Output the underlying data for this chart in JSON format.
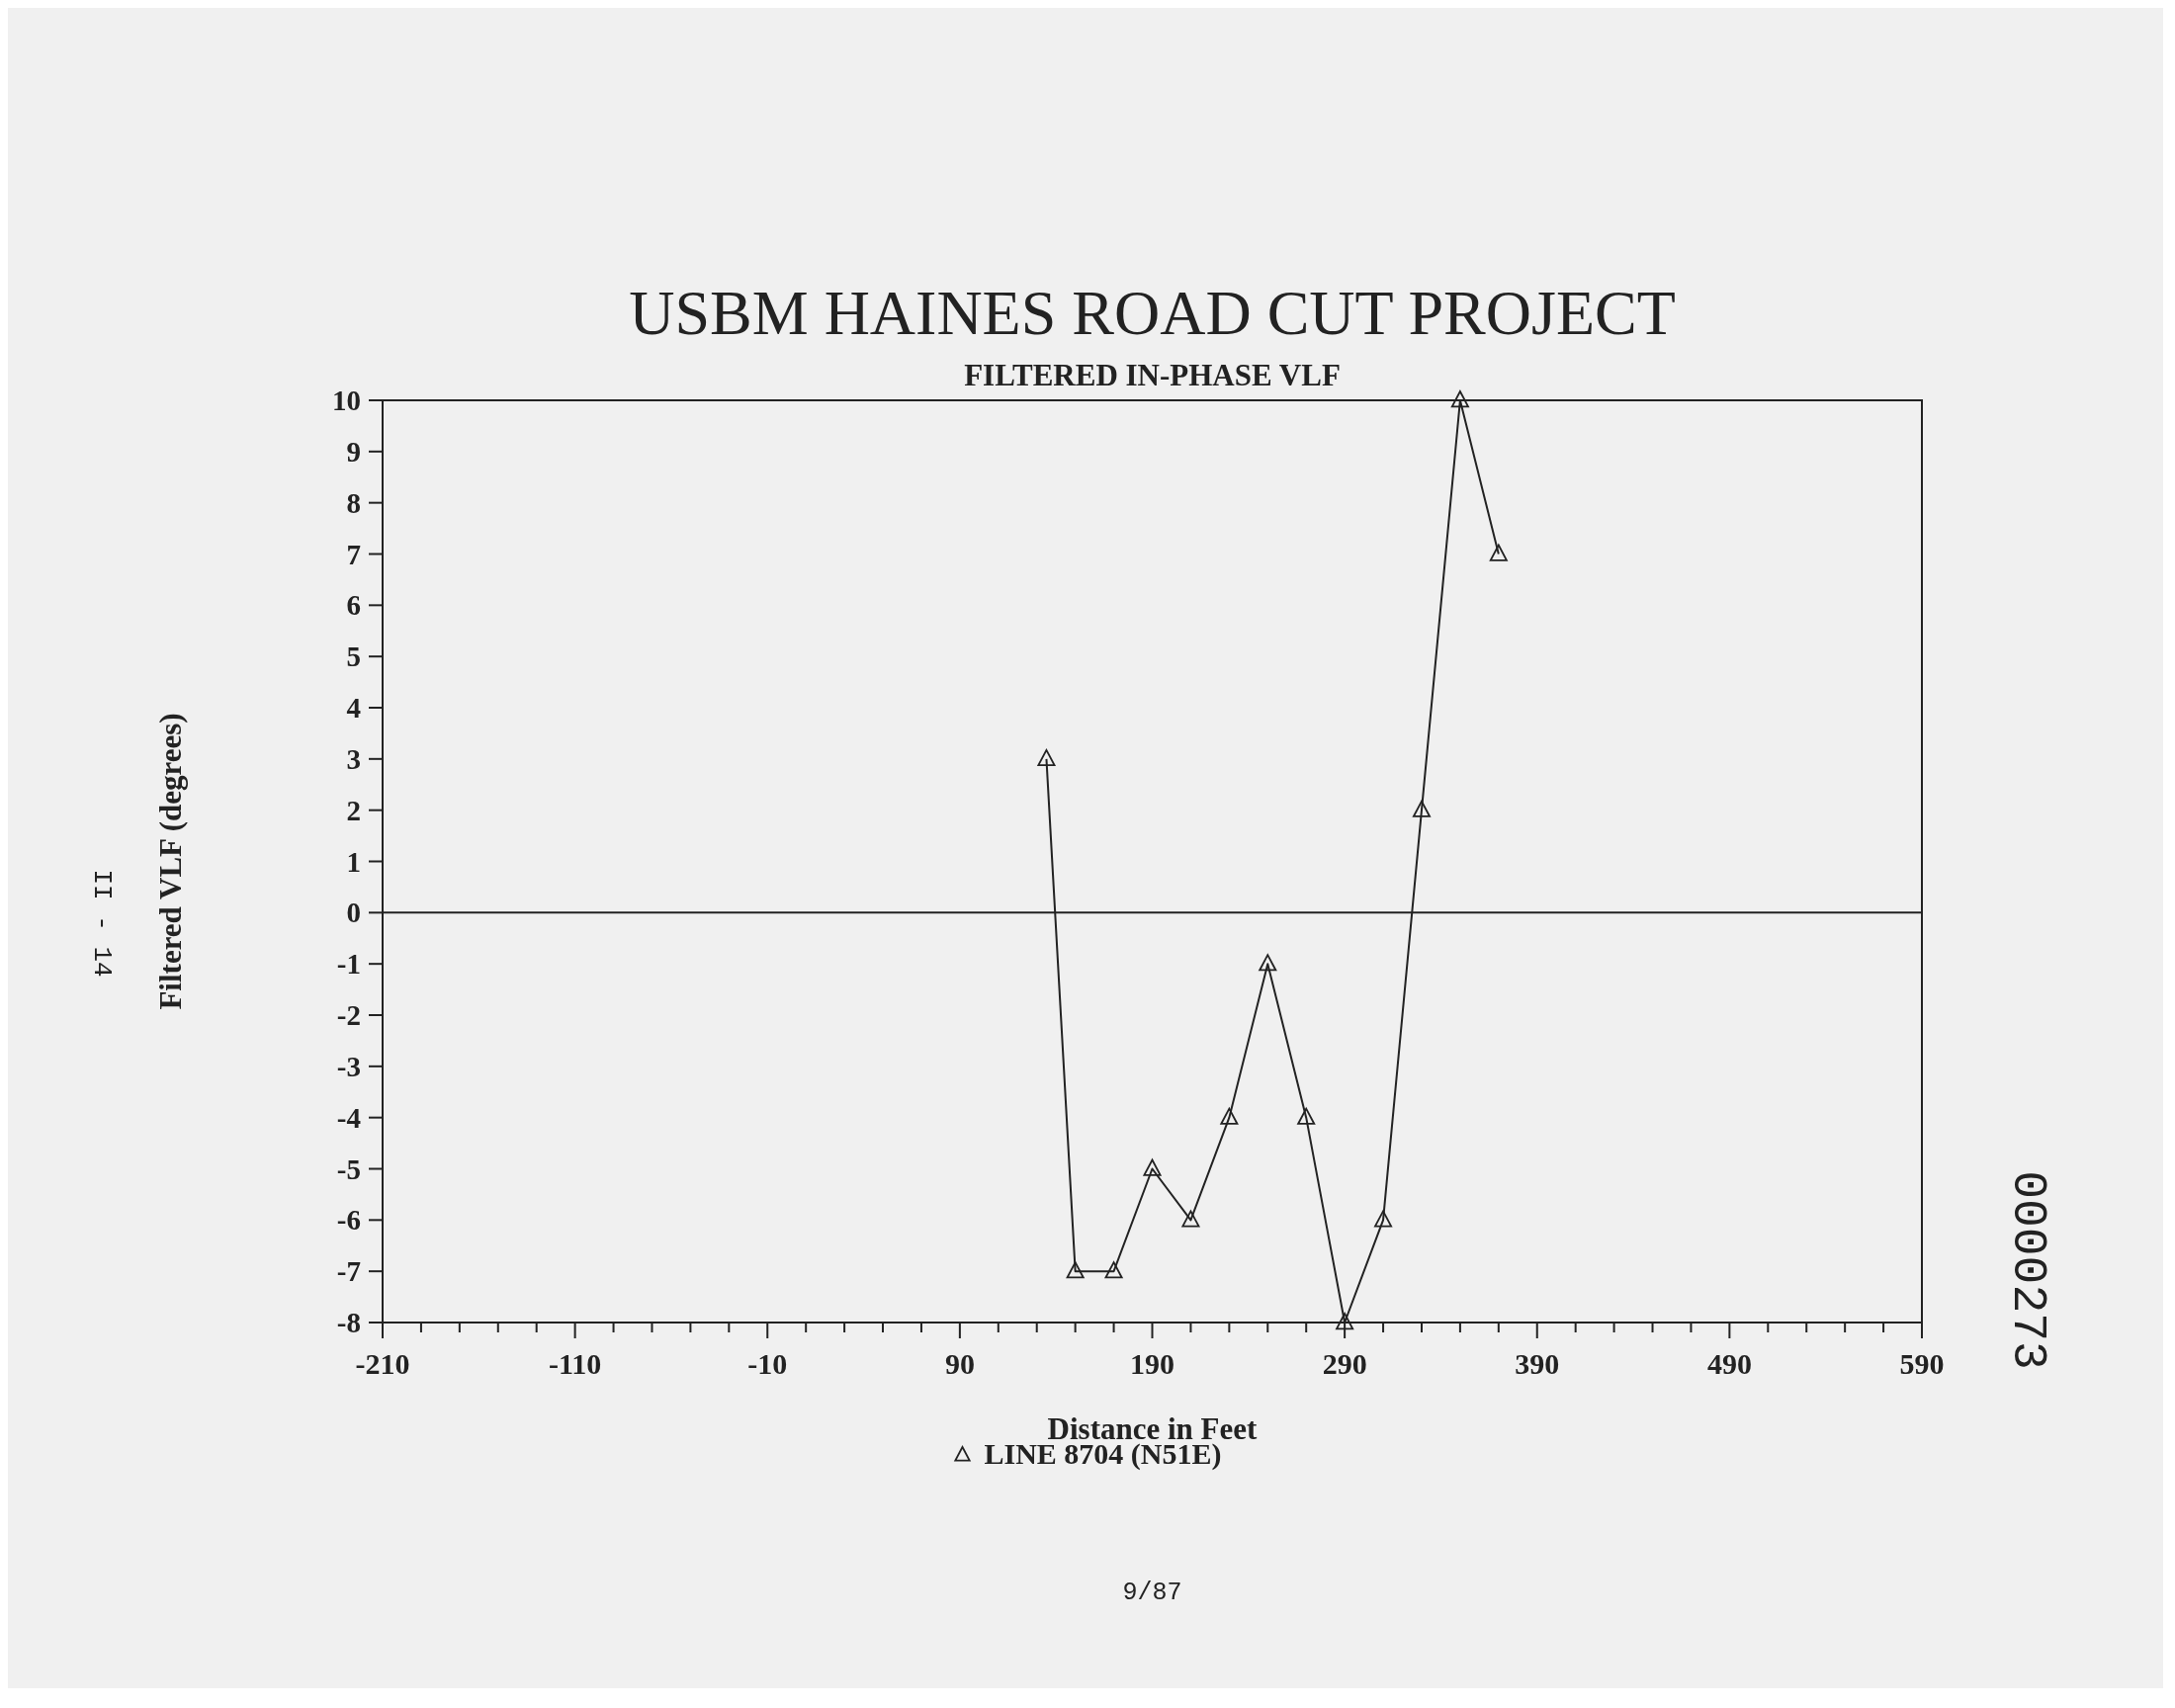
{
  "chart_data": {
    "type": "line",
    "title": "USBM HAINES ROAD CUT PROJECT",
    "subtitle": "FILTERED IN-PHASE VLF",
    "xlabel": "Distance in Feet",
    "ylabel": "Filtered VLF (degrees)",
    "annotations": [
      "9/87",
      "II - 14",
      "0000273"
    ],
    "xlim": [
      -210,
      590
    ],
    "xticks": [
      -210,
      {
        "value": -190,
        "label": null
      },
      {
        "value": -170,
        "label": null
      },
      {
        "value": -150,
        "label": null
      },
      {
        "value": -130,
        "label": null
      },
      -110,
      {
        "value": -90,
        "label": null
      },
      {
        "value": -70,
        "label": null
      },
      {
        "value": -50,
        "label": null
      },
      {
        "value": -30,
        "label": null
      },
      -10,
      {
        "value": 10,
        "label": null
      },
      {
        "value": 30,
        "label": null
      },
      {
        "value": 50,
        "label": null
      },
      {
        "value": 70,
        "label": null
      },
      90,
      {
        "value": 110,
        "label": null
      },
      {
        "value": 130,
        "label": null
      },
      {
        "value": 150,
        "label": null
      },
      {
        "value": 170,
        "label": null
      },
      190,
      {
        "value": 210,
        "label": null
      },
      {
        "value": 230,
        "label": null
      },
      {
        "value": 250,
        "label": null
      },
      {
        "value": 270,
        "label": null
      },
      290,
      {
        "value": 310,
        "label": null
      },
      {
        "value": 330,
        "label": null
      },
      {
        "value": 350,
        "label": null
      },
      {
        "value": 370,
        "label": null
      },
      390,
      {
        "value": 410,
        "label": null
      },
      {
        "value": 430,
        "label": null
      },
      {
        "value": 450,
        "label": null
      },
      {
        "value": 470,
        "label": null
      },
      490,
      {
        "value": 510,
        "label": null
      },
      {
        "value": 530,
        "label": null
      },
      {
        "value": 550,
        "label": null
      },
      {
        "value": 570,
        "label": null
      },
      590
    ],
    "ylim": [
      -8,
      10
    ],
    "yticks": [
      -8,
      -7,
      -6,
      -5,
      -4,
      -3,
      -2,
      -1,
      0,
      1,
      2,
      3,
      4,
      5,
      6,
      7,
      8,
      9,
      10
    ],
    "x": [
      135,
      150,
      170,
      190,
      210,
      230,
      250,
      270,
      290,
      310,
      330,
      350,
      370
    ],
    "series": [
      {
        "name": "LINE 8704 (N51E)",
        "color": "#222222",
        "values": [
          3,
          -7,
          -7,
          -5,
          -6,
          -4,
          -1,
          -4,
          -8,
          -6,
          2,
          10,
          7
        ]
      }
    ],
    "ref_lines": [
      {
        "axis": "y",
        "value": 0,
        "color": "#222222"
      }
    ],
    "marker": "triangle",
    "line_style": "solid",
    "legend": "bottom",
    "grid": false
  }
}
